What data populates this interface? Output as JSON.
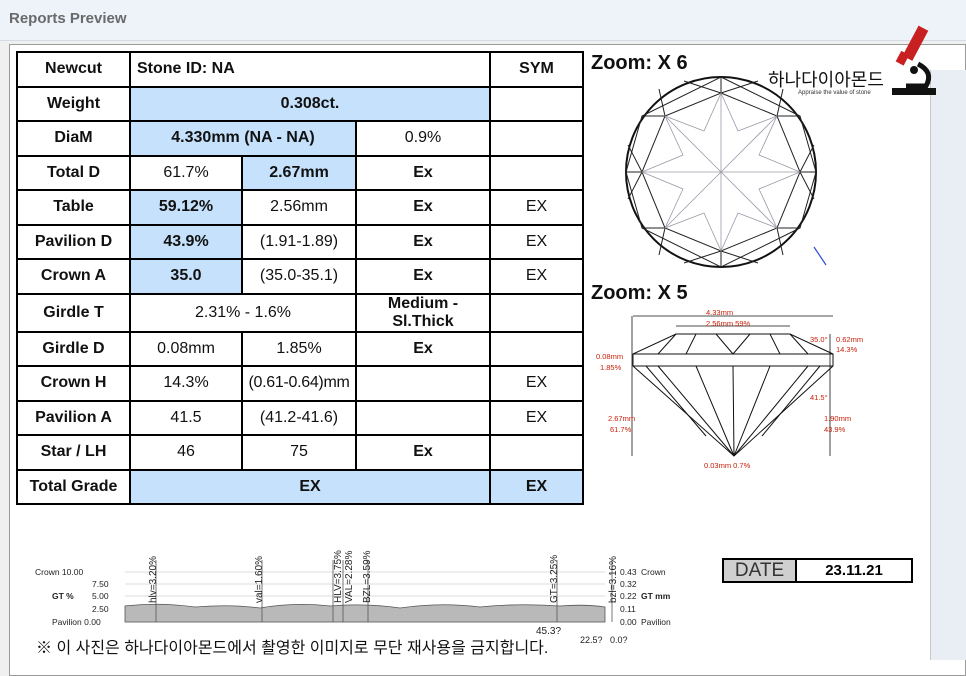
{
  "window": {
    "title": "Reports Preview"
  },
  "table": {
    "header": {
      "brand": "Newcut",
      "stone_id": "Stone ID: NA",
      "sym": "SYM"
    },
    "rows": [
      {
        "label": "Weight",
        "v1": "0.308ct.",
        "v2": "",
        "v3": "",
        "sym": ""
      },
      {
        "label": "DiaM",
        "v1": "4.330mm (NA - NA)",
        "v2": "",
        "v3": "0.9%",
        "sym": ""
      },
      {
        "label": "Total D",
        "v1": "61.7%",
        "v2": "2.67mm",
        "v3": "Ex",
        "sym": ""
      },
      {
        "label": "Table",
        "v1": "59.12%",
        "v2": "2.56mm",
        "v3": "Ex",
        "sym": "EX"
      },
      {
        "label": "Pavilion D",
        "v1": "43.9%",
        "v2": "(1.91-1.89)",
        "v3": "Ex",
        "sym": "EX"
      },
      {
        "label": "Crown A",
        "v1": "35.0",
        "v2": "(35.0-35.1)",
        "v3": "Ex",
        "sym": "EX"
      },
      {
        "label": "Girdle T",
        "v1": "2.31% - 1.6%",
        "v2": "",
        "v3": "Medium - Sl.Thick",
        "sym": ""
      },
      {
        "label": "Girdle D",
        "v1": "0.08mm",
        "v2": "1.85%",
        "v3": "Ex",
        "sym": ""
      },
      {
        "label": "Crown H",
        "v1": "14.3%",
        "v2": "(0.61-0.64)mm",
        "v3": "",
        "sym": "EX"
      },
      {
        "label": "Pavilion A",
        "v1": "41.5",
        "v2": "(41.2-41.6)",
        "v3": "",
        "sym": "EX"
      },
      {
        "label": "Star / LH",
        "v1": "46",
        "v2": "75",
        "v3": "Ex",
        "sym": ""
      }
    ],
    "total": {
      "label": "Total Grade",
      "value": "EX",
      "sym": "EX"
    }
  },
  "zoom": {
    "top": "Zoom: X 6",
    "side": "Zoom: X 5"
  },
  "logo": {
    "name": "하나다이아몬드",
    "tagline": "Appraise the value of stone"
  },
  "profile": {
    "diameter": "4.33mm",
    "table": "2.56mm 59%",
    "crown_angle": "35.0°",
    "crown_h": "0.62mm",
    "crown_h_pct": "14.3%",
    "girdle_mm": "0.08mm",
    "girdle_pct": "1.85%",
    "pav_angle": "41.5°",
    "total_mm": "2.67mm",
    "total_pct": "61.7%",
    "pav_mm": "1.90mm",
    "pav_pct": "43.9%",
    "culet": "0.03mm 0.7%"
  },
  "girdle_chart": {
    "left_axis": {
      "top": "Crown 10.00",
      "t75": "7.50",
      "mid": "5.00",
      "t25": "2.50",
      "bot": "Pavilion 0.00",
      "label": "GT %"
    },
    "right_axis": {
      "top": "0.43",
      "t2": "0.32",
      "mid": "0.22",
      "t4": "0.11",
      "bot": "0.00",
      "label_top": "Crown",
      "label_mid": "GT mm",
      "label_bot": "Pavilion"
    },
    "markers": [
      "hlv=3.20%",
      "val=1.60%",
      "HLV=3.75%",
      "VAL=2.28%",
      "BZL=3.59%",
      "GT=3.25%",
      "bzl=3.16%"
    ],
    "bottom_labels": [
      "45.3?",
      "22.5?",
      "0.0?"
    ]
  },
  "date": {
    "label": "DATE",
    "value": "23.11.21"
  },
  "notice": "※ 이 사진은 하나다이아몬드에서 촬영한 이미지로 무단 재사용을 금지합니다."
}
